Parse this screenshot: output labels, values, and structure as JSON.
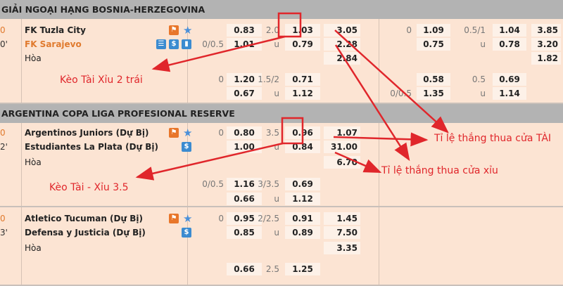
{
  "colors": {
    "accent": "#e0262b",
    "header": "#b3b3b3",
    "row": "#fce4d3",
    "live": "#e07a2e"
  },
  "leagues": [
    {
      "title": "GIẢI NGOẠI HẠNG BOSNIA-HERZEGOVINA",
      "matches": [
        {
          "score": "0",
          "time": "0'",
          "home": "FK Tuzla City",
          "away": "FK Sarajevo",
          "draw": "Hòa",
          "away_highlight": true,
          "icons_home": [
            "running-icon",
            "star-icon"
          ],
          "icons_away": [
            "list-icon",
            "dollar-icon",
            "stats-icon"
          ],
          "rows": [
            [
              "",
              "0.83",
              "2.0",
              "1.03",
              "3.05",
              "0",
              "1.09",
              "0.5/1",
              "1.04",
              "3.85"
            ],
            [
              "0/0.5",
              "1.01",
              "u",
              "0.79",
              "2.28",
              "",
              "0.75",
              "u",
              "0.78",
              "3.20"
            ],
            [
              "",
              "",
              "",
              "",
              "2.84",
              "",
              "",
              "",
              "",
              "1.82"
            ],
            [
              "0",
              "1.20",
              "1.5/2",
              "0.71",
              "",
              "",
              "0.58",
              "0.5",
              "0.69",
              ""
            ],
            [
              "",
              "0.67",
              "u",
              "1.12",
              "",
              "0/0.5",
              "1.35",
              "u",
              "1.14",
              ""
            ]
          ]
        }
      ]
    },
    {
      "title": "ARGENTINA COPA LIGA PROFESIONAL RESERVE",
      "matches": [
        {
          "score": "0",
          "time": "2'",
          "home": "Argentinos Juniors (Dự Bị)",
          "away": "Estudiantes La Plata (Dự Bị)",
          "draw": "Hòa",
          "icons_home": [
            "running-icon",
            "star-icon"
          ],
          "icons_away": [
            "dollar-icon"
          ],
          "rows": [
            [
              "0",
              "0.80",
              "3.5",
              "0.96",
              "1.07"
            ],
            [
              "",
              "1.00",
              "u",
              "0.84",
              "31.00"
            ],
            [
              "",
              "",
              "",
              "",
              "6.70"
            ],
            [
              "0/0.5",
              "1.16",
              "3/3.5",
              "0.69",
              ""
            ],
            [
              "",
              "0.66",
              "u",
              "1.12",
              ""
            ]
          ]
        },
        {
          "score": "0",
          "time": "3'",
          "home": "Atletico Tucuman (Dự Bị)",
          "away": "Defensa y Justicia (Dự Bị)",
          "draw": "Hòa",
          "icons_home": [
            "running-icon",
            "star-icon"
          ],
          "icons_away": [
            "dollar-icon"
          ],
          "rows": [
            [
              "0",
              "0.95",
              "2/2.5",
              "0.91",
              "1.45"
            ],
            [
              "",
              "0.85",
              "u",
              "0.89",
              "7.50"
            ],
            [
              "",
              "",
              "",
              "",
              "3.35"
            ],
            [
              "",
              "0.66",
              "2.5",
              "1.25",
              ""
            ]
          ]
        }
      ]
    }
  ],
  "annotations": {
    "tai_xiu_2": "Kèo Tài Xỉu 2 trái",
    "tai_xiu_35": "Kèo Tài - Xỉu 3.5",
    "tai": "Tỉ lệ thắng thua cửa TÀI",
    "xiu": "Tỉ lệ thắng thua cửa xỉu"
  }
}
